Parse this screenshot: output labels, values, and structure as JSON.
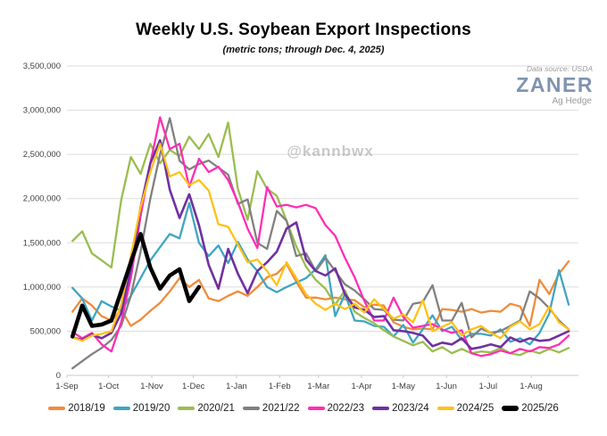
{
  "header": {
    "title": "Weekly U.S. Soybean Export Inspections",
    "subtitle": "(metric tons; through Dec. 4, 2025)"
  },
  "branding": {
    "data_source": "Data source: USDA",
    "logo": "ZANER",
    "logo_tagline": "Ag Hedge",
    "logo_color": "#8093AF"
  },
  "watermark": "@kannbwx",
  "colors": {
    "grid": "#DBDBDB",
    "axis_line": "#C8C8C8",
    "axis_text": "#3F3F3F"
  },
  "chart_data": {
    "type": "line",
    "title": "Weekly U.S. Soybean Export Inspections",
    "subtitle": "(metric tons; through Dec. 4, 2025)",
    "unit": "metric tons",
    "x_unit": "week of marketing year (Sep through Aug)",
    "legend_position": "bottom",
    "grid": true,
    "x_axis": {
      "tick_labels": [
        "1-Sep",
        "1-Oct",
        "1-Nov",
        "1-Dec",
        "1-Jan",
        "1-Feb",
        "1-Mar",
        "1-Apr",
        "1-May",
        "1-Jun",
        "1-Jul",
        "1-Aug"
      ],
      "month_start_days": [
        0,
        30,
        61,
        91,
        122,
        153,
        181,
        212,
        242,
        273,
        303,
        334
      ],
      "total_days": 368
    },
    "y_axis": {
      "min": 0,
      "max": 3500000,
      "step": 500000,
      "tick_labels": [
        "0",
        "500,000",
        "1,000,000",
        "1,500,000",
        "2,000,000",
        "2,500,000",
        "3,000,000",
        "3,500,000"
      ]
    },
    "series": [
      {
        "name": "2018/19",
        "color": "#F08C3A",
        "line_width": 2.3,
        "values": [
          720000,
          870000,
          790000,
          670000,
          620000,
          740000,
          560000,
          630000,
          730000,
          820000,
          950000,
          1100000,
          1000000,
          1080000,
          870000,
          840000,
          900000,
          950000,
          900000,
          1000000,
          1110000,
          1150000,
          1260000,
          1060000,
          880000,
          880000,
          860000,
          880000,
          860000,
          850000,
          770000,
          800000,
          790000,
          600000,
          550000,
          520000,
          530000,
          520000,
          750000,
          740000,
          720000,
          750000,
          710000,
          730000,
          720000,
          810000,
          780000,
          560000,
          1080000,
          920000,
          1150000,
          1290000
        ]
      },
      {
        "name": "2019/20",
        "color": "#3FA5C2",
        "line_width": 2.3,
        "values": [
          990000,
          870000,
          620000,
          840000,
          780000,
          730000,
          900000,
          1100000,
          1300000,
          1450000,
          1600000,
          1550000,
          1950000,
          1500000,
          1350000,
          1470000,
          1270000,
          1510000,
          1310000,
          1180000,
          1000000,
          940000,
          1000000,
          1050000,
          1100000,
          1200000,
          1360000,
          670000,
          920000,
          620000,
          610000,
          560000,
          550000,
          440000,
          570000,
          370000,
          520000,
          680000,
          500000,
          550000,
          400000,
          470000,
          470000,
          450000,
          520000,
          380000,
          420000,
          350000,
          480000,
          700000,
          1190000,
          800000
        ]
      },
      {
        "name": "2020/21",
        "color": "#9ABD4F",
        "line_width": 2.3,
        "values": [
          1520000,
          1630000,
          1380000,
          1300000,
          1220000,
          1980000,
          2470000,
          2280000,
          2620000,
          2400000,
          2550000,
          2480000,
          2700000,
          2560000,
          2730000,
          2470000,
          2860000,
          2110000,
          1760000,
          2310000,
          2110000,
          2030000,
          1750000,
          1460000,
          1230000,
          1080000,
          980000,
          800000,
          960000,
          720000,
          650000,
          590000,
          510000,
          440000,
          390000,
          340000,
          380000,
          270000,
          320000,
          250000,
          300000,
          250000,
          270000,
          260000,
          310000,
          250000,
          230000,
          280000,
          250000,
          300000,
          260000,
          310000
        ]
      },
      {
        "name": "2021/22",
        "color": "#808080",
        "line_width": 2.3,
        "values": [
          80000,
          160000,
          240000,
          310000,
          400000,
          560000,
          900000,
          1400000,
          2000000,
          2500000,
          2910000,
          2430000,
          2330000,
          2390000,
          2430000,
          2350000,
          2270000,
          1940000,
          1990000,
          1500000,
          1430000,
          1860000,
          1750000,
          1350000,
          1380000,
          1180000,
          1330000,
          1180000,
          1030000,
          960000,
          860000,
          750000,
          740000,
          630000,
          620000,
          810000,
          830000,
          1020000,
          620000,
          620000,
          820000,
          430000,
          530000,
          480000,
          500000,
          560000,
          620000,
          950000,
          870000,
          760000,
          620000,
          520000
        ]
      },
      {
        "name": "2022/23",
        "color": "#FF2DB5",
        "line_width": 2.3,
        "values": [
          490000,
          420000,
          480000,
          350000,
          270000,
          600000,
          1100000,
          1800000,
          2400000,
          2920000,
          2560000,
          2620000,
          2130000,
          2450000,
          2300000,
          2360000,
          2210000,
          1960000,
          1660000,
          1440000,
          2130000,
          1910000,
          1930000,
          1900000,
          1930000,
          1890000,
          1700000,
          1580000,
          1330000,
          1110000,
          840000,
          620000,
          620000,
          880000,
          660000,
          540000,
          560000,
          580000,
          520000,
          480000,
          510000,
          250000,
          220000,
          240000,
          280000,
          250000,
          300000,
          270000,
          320000,
          310000,
          350000,
          450000
        ]
      },
      {
        "name": "2023/24",
        "color": "#7030A0",
        "line_width": 2.6,
        "values": [
          430000,
          400000,
          460000,
          420000,
          480000,
          700000,
          1200000,
          1900000,
          2400000,
          2660000,
          2100000,
          1780000,
          2050000,
          1700000,
          1250000,
          980000,
          1430000,
          1150000,
          930000,
          1180000,
          1280000,
          1400000,
          1660000,
          1730000,
          1310000,
          1180000,
          1130000,
          1210000,
          920000,
          770000,
          740000,
          660000,
          670000,
          510000,
          500000,
          480000,
          450000,
          330000,
          370000,
          350000,
          420000,
          300000,
          320000,
          350000,
          320000,
          430000,
          380000,
          420000,
          390000,
          400000,
          450000,
          500000
        ]
      },
      {
        "name": "2024/25",
        "color": "#FFC117",
        "line_width": 2.3,
        "values": [
          430000,
          390000,
          450000,
          470000,
          500000,
          800000,
          1350000,
          1900000,
          2300000,
          2620000,
          2250000,
          2300000,
          2150000,
          2210000,
          2090000,
          1710000,
          1680000,
          1480000,
          1280000,
          1310000,
          1180000,
          1020000,
          1280000,
          1100000,
          920000,
          810000,
          740000,
          810000,
          750000,
          810000,
          710000,
          860000,
          750000,
          640000,
          690000,
          600000,
          850000,
          500000,
          550000,
          600000,
          450000,
          520000,
          560000,
          480000,
          420000,
          550000,
          610000,
          520000,
          580000,
          780000,
          600000,
          520000
        ]
      },
      {
        "name": "2025/26",
        "color": "#000000",
        "line_width": 4.5,
        "partial": "through Dec. 4, 2025",
        "values": [
          440000,
          790000,
          560000,
          575000,
          620000,
          950000,
          1280000,
          1600000,
          1220000,
          980000,
          1130000,
          1200000,
          840000,
          1000000
        ]
      }
    ]
  }
}
